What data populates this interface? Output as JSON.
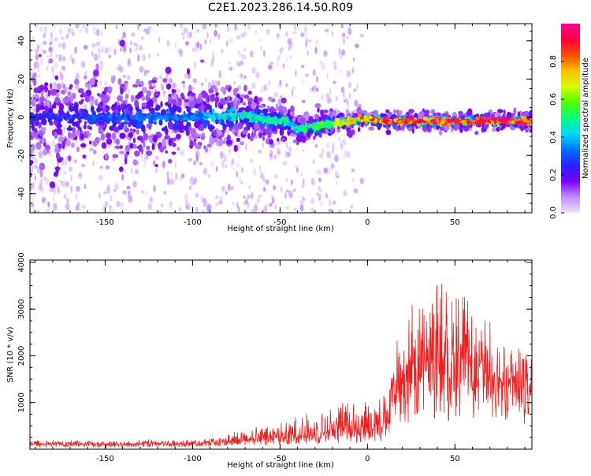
{
  "title": "C2E1.2023.286.14.50.R09",
  "chart_data": [
    {
      "type": "heatmap",
      "xlabel": "Height of straight line (km)",
      "ylabel": "Frequency (Hz)",
      "xlim": [
        -193,
        94
      ],
      "ylim": [
        -50,
        49
      ],
      "xticks": [
        -150,
        -100,
        -50,
        0,
        50
      ],
      "yticks": [
        -40,
        -20,
        0,
        20,
        40
      ],
      "colorbar": {
        "label": "Normalized spectral amplitude",
        "range": [
          0,
          1
        ],
        "ticks": [
          "0.0",
          "0.2",
          "0.4",
          "0.6",
          "0.8"
        ],
        "colors": [
          "#f0e0ff",
          "#c090ff",
          "#7a00ff",
          "#2a20ff",
          "#0070ff",
          "#00d8ff",
          "#00ff80",
          "#50ff00",
          "#d0ff00",
          "#ffc000",
          "#ff5000",
          "#ff0040",
          "#ff0090"
        ]
      },
      "ridge": {
        "x": [
          -193,
          -150,
          -100,
          -75,
          -50,
          -45,
          -40,
          -30,
          -20,
          -10,
          -5,
          0,
          10,
          20,
          30,
          40,
          50,
          60,
          70,
          80,
          94
        ],
        "y": [
          0,
          0,
          0,
          1,
          -2,
          -3,
          -6,
          -5,
          -3,
          -2,
          -1,
          -1,
          -2,
          -2,
          -2,
          -2,
          -2,
          -2,
          -2,
          -2,
          -2
        ]
      },
      "ridge_amplitude": {
        "x": [
          -193,
          -150,
          -100,
          -75,
          -50,
          -40,
          -30,
          -20,
          -10,
          0,
          20,
          40,
          60,
          80,
          94
        ],
        "value": [
          0.25,
          0.3,
          0.35,
          0.45,
          0.5,
          0.45,
          0.55,
          0.6,
          0.7,
          0.8,
          0.85,
          0.88,
          0.9,
          0.9,
          0.88
        ]
      },
      "spread_hz": {
        "x": [
          -193,
          -150,
          -100,
          -80,
          -60,
          -40,
          -20,
          0,
          40,
          94
        ],
        "value": [
          12,
          11,
          10,
          7,
          5,
          4,
          3,
          2,
          2,
          2
        ]
      }
    },
    {
      "type": "line",
      "xlabel": "Height of straight line (km)",
      "ylabel": "SNR (10 * v/v)",
      "xlim": [
        -193,
        94
      ],
      "ylim": [
        0,
        4050
      ],
      "xticks": [
        -150,
        -100,
        -50,
        0,
        50
      ],
      "yticks": [
        1000,
        2000,
        3000,
        4000
      ],
      "color": "#ee2020",
      "envelope": {
        "x": [
          -193,
          -150,
          -100,
          -85,
          -70,
          -55,
          -40,
          -25,
          -10,
          0,
          12,
          15,
          20,
          30,
          40,
          50,
          60,
          70,
          80,
          94
        ],
        "base": [
          130,
          130,
          140,
          160,
          220,
          260,
          300,
          380,
          450,
          480,
          600,
          1500,
          1750,
          1850,
          1900,
          1950,
          1850,
          1800,
          1750,
          1750
        ],
        "spread": [
          80,
          80,
          90,
          140,
          250,
          320,
          450,
          550,
          650,
          700,
          650,
          1200,
          1500,
          1700,
          1900,
          2000,
          1500,
          1100,
          800,
          600
        ]
      }
    }
  ]
}
